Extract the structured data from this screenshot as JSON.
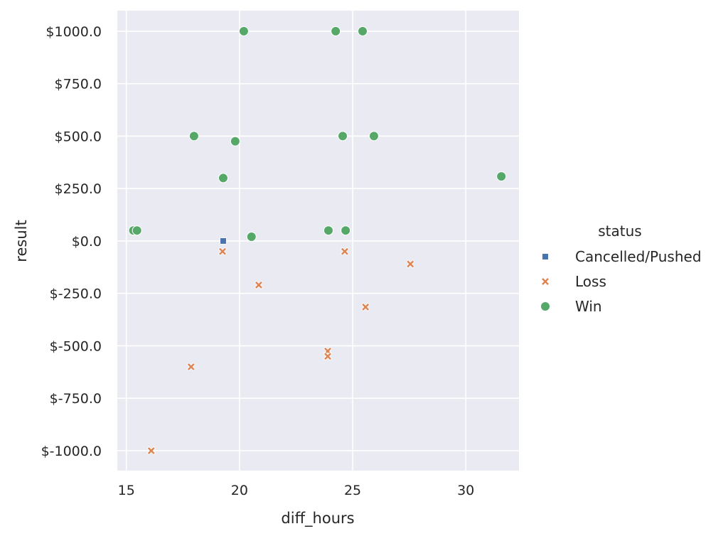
{
  "chart_data": {
    "type": "scatter",
    "title": "",
    "xlabel": "diff_hours",
    "ylabel": "result",
    "xlim": [
      14.6,
      32.35
    ],
    "ylim": [
      -1095,
      1098
    ],
    "xticks": [
      15,
      20,
      25,
      30
    ],
    "xtick_labels": [
      "15",
      "20",
      "25",
      "30"
    ],
    "yticks": [
      1000,
      750,
      500,
      250,
      0,
      -250,
      -500,
      -750,
      -1000
    ],
    "ytick_labels": [
      "$1000.0",
      "$750.0",
      "$500.0",
      "$250.0",
      "$0.0",
      "$-250.0",
      "$-500.0",
      "$-750.0",
      "$-1000.0"
    ],
    "grid": true,
    "background": "#eaeaf2",
    "legend": {
      "title": "status",
      "placement": "right"
    },
    "series": [
      {
        "name": "Cancelled/Pushed",
        "marker": "square",
        "color": "#4c72b0",
        "points": [
          [
            19.28,
            0
          ]
        ]
      },
      {
        "name": "Loss",
        "marker": "x",
        "color": "#dd8452",
        "points": [
          [
            19.25,
            -50
          ],
          [
            24.65,
            -50
          ],
          [
            27.55,
            -110
          ],
          [
            20.85,
            -210
          ],
          [
            25.57,
            -315
          ],
          [
            23.9,
            -525
          ],
          [
            23.9,
            -550
          ],
          [
            17.86,
            -600
          ],
          [
            16.1,
            -1000
          ]
        ]
      },
      {
        "name": "Win",
        "marker": "circle",
        "color": "#55a868",
        "points": [
          [
            20.19,
            1000
          ],
          [
            24.25,
            1000
          ],
          [
            25.44,
            1000
          ],
          [
            17.99,
            500
          ],
          [
            19.81,
            475
          ],
          [
            24.56,
            500
          ],
          [
            25.94,
            500
          ],
          [
            19.28,
            300
          ],
          [
            31.57,
            308
          ],
          [
            15.31,
            50
          ],
          [
            15.47,
            50
          ],
          [
            20.53,
            20
          ],
          [
            23.93,
            50
          ],
          [
            24.69,
            50
          ]
        ]
      }
    ]
  }
}
